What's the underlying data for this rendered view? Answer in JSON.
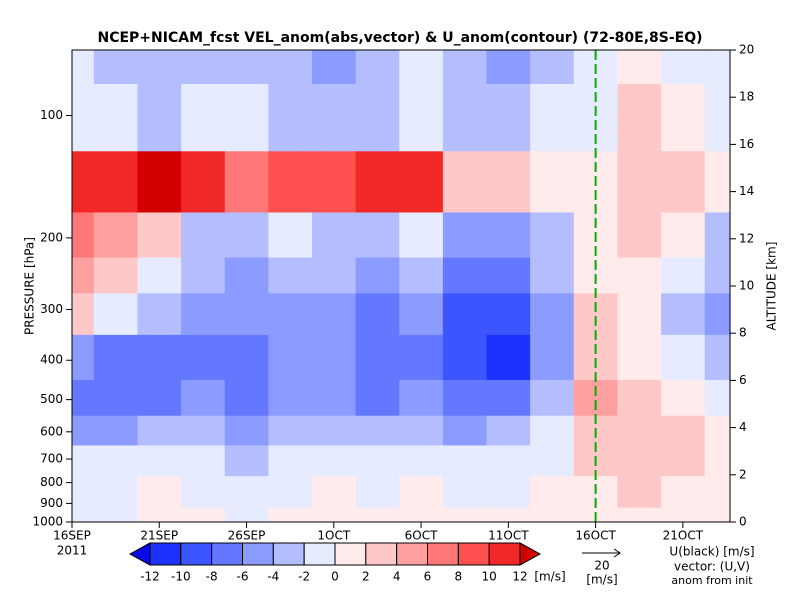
{
  "chart_data": {
    "type": "heatmap",
    "title": "NCEP+NICAM_fcst VEL_anom(abs,vector) & U_anom(contour)   (72-80E,8S-EQ)",
    "year": "2011",
    "ylabel": "PRESSURE [hPa]",
    "y2label": "ALTITUDE [km]",
    "x": [
      0,
      2.5,
      5,
      7.5,
      10,
      12.5,
      15,
      17.5,
      20,
      22.5,
      25,
      27.5,
      30,
      32.5,
      35,
      37.5
    ],
    "levels": [
      70,
      100,
      150,
      200,
      250,
      300,
      400,
      500,
      600,
      700,
      850,
      1000
    ],
    "z": [
      [
        -2,
        -3,
        -4,
        -4,
        -3,
        -4,
        -5,
        -3,
        -2,
        -4,
        -5,
        -3,
        -1,
        1,
        -2,
        -2
      ],
      [
        -1,
        -2,
        -3,
        -2,
        -2,
        -3,
        -4,
        -4,
        -1,
        -3,
        -4,
        -2,
        -2,
        2,
        1,
        -1
      ],
      [
        10,
        11,
        12,
        10,
        7,
        8,
        9,
        10,
        11,
        3,
        2,
        1,
        1,
        3,
        2,
        1
      ],
      [
        6,
        5,
        3,
        -3,
        -4,
        -2,
        -3,
        -3,
        -2,
        -5,
        -6,
        -3,
        1,
        2,
        0,
        -3
      ],
      [
        4,
        2,
        -2,
        -4,
        -5,
        -3,
        -4,
        -6,
        -4,
        -8,
        -8,
        -4,
        1,
        1,
        -2,
        -4
      ],
      [
        2,
        -2,
        -4,
        -5,
        -6,
        -5,
        -5,
        -8,
        -6,
        -10,
        -10,
        -5,
        2,
        1,
        -3,
        -6
      ],
      [
        -6,
        -8,
        -8,
        -7,
        -7,
        -6,
        -6,
        -8,
        -7,
        -10,
        -11,
        -6,
        3,
        1,
        -2,
        -4
      ],
      [
        -7,
        -8,
        -7,
        -6,
        -8,
        -6,
        -5,
        -7,
        -6,
        -8,
        -7,
        -4,
        4,
        2,
        0,
        -2
      ],
      [
        -5,
        -6,
        -4,
        -3,
        -6,
        -4,
        -3,
        -4,
        -3,
        -5,
        -4,
        -2,
        3,
        3,
        2,
        0
      ],
      [
        -2,
        -2,
        -1,
        -2,
        -3,
        -2,
        -1,
        -2,
        -1,
        -2,
        -2,
        -1,
        2,
        3,
        2,
        1
      ],
      [
        -1,
        -2,
        0,
        -1,
        -2,
        -1,
        0,
        -1,
        0,
        -1,
        -1,
        0,
        1,
        2,
        1,
        1
      ],
      [
        -1,
        -1,
        0,
        0,
        -1,
        0,
        0,
        0,
        0,
        0,
        0,
        0,
        1,
        1,
        1,
        1
      ]
    ],
    "xlim": [
      0,
      37.7
    ],
    "xticks": [
      {
        "value": 0,
        "label": "16SEP"
      },
      {
        "value": 5,
        "label": "21SEP"
      },
      {
        "value": 10,
        "label": "26SEP"
      },
      {
        "value": 15,
        "label": "1OCT"
      },
      {
        "value": 20,
        "label": "6OCT"
      },
      {
        "value": 25,
        "label": "11OCT"
      },
      {
        "value": 30,
        "label": "16OCT"
      },
      {
        "value": 35,
        "label": "21OCT"
      }
    ],
    "ylim": [
      1000,
      69
    ],
    "log_y": true,
    "yticks": [
      100,
      200,
      300,
      400,
      500,
      600,
      700,
      800,
      900,
      1000
    ],
    "y2lim": [
      0,
      20
    ],
    "y2ticks": [
      0,
      2,
      4,
      6,
      8,
      10,
      12,
      14,
      16,
      18,
      20
    ],
    "init_line": {
      "x": 30,
      "color": "#00b000"
    },
    "colorbar": {
      "levels": [
        -12,
        -10,
        -8,
        -6,
        -4,
        -2,
        0,
        2,
        4,
        6,
        8,
        10,
        12
      ],
      "colors": [
        "#0a0ae6",
        "#1e32ff",
        "#3c55ff",
        "#6478ff",
        "#8c9bff",
        "#b4beff",
        "#e6ebff",
        "#ffebeb",
        "#ffc8c8",
        "#ffa0a0",
        "#ff7878",
        "#ff5050",
        "#f02828",
        "#d20000"
      ],
      "unit": "[m/s]"
    },
    "reference_vector": {
      "value": "20",
      "unit": "[m/s]"
    },
    "notes": [
      "U(black) [m/s]",
      "vector: (U,V)",
      "anom from init"
    ]
  }
}
